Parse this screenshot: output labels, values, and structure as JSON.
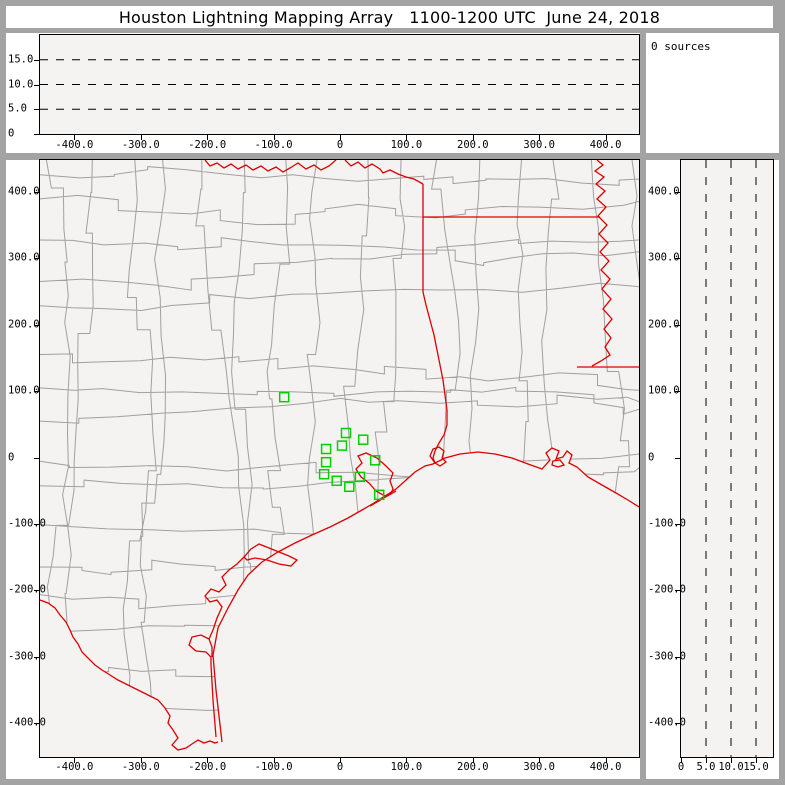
{
  "title": "Houston Lightning Mapping Array   1100-1200 UTC  June 24, 2018",
  "colors": {
    "frame_gray": "#a3a3a3",
    "panel_white": "#ffffff",
    "plot_background": "#f4f3f1",
    "axis_black": "#000000",
    "county_gray": "#a0a0a0",
    "state_border_red": "#dd0000",
    "station_green": "#00d000"
  },
  "chart_data": [
    {
      "id": "ew-altitude-cross-section",
      "type": "scatter",
      "title": "",
      "xlabel": "",
      "ylabel": "",
      "x_range": [
        -452,
        450
      ],
      "y_range": [
        0,
        20
      ],
      "x_ticks": {
        "values": [
          -400,
          -300,
          -200,
          -100,
          0,
          100,
          200,
          300,
          400
        ],
        "labels": [
          "-400.0",
          "-300.0",
          "-200.0",
          "-100.0",
          "0",
          "100.0",
          "200.0",
          "300.0",
          "400.0"
        ]
      },
      "y_ticks": {
        "values": [
          15,
          10,
          5,
          0
        ],
        "labels": [
          "15.0",
          "10.0",
          "5.0",
          "0"
        ]
      },
      "dashed_gridlines_altitude_km": [
        5,
        10,
        15
      ],
      "grid": "dashed horizontal",
      "points": []
    },
    {
      "id": "source-count-histogram",
      "type": "histogram",
      "label": "0 sources",
      "values": []
    },
    {
      "id": "plan-view-map",
      "type": "scatter",
      "title": "",
      "x_range": [
        -452,
        450
      ],
      "y_range": [
        -450,
        448
      ],
      "x_ticks": {
        "values": [
          -400,
          -300,
          -200,
          -100,
          0,
          100,
          200,
          300,
          400
        ],
        "labels": [
          "-400.0",
          "-300.0",
          "-200.0",
          "-100.0",
          "0",
          "100.0",
          "200.0",
          "300.0",
          "400.0"
        ]
      },
      "y_ticks": {
        "values": [
          400,
          300,
          200,
          100,
          0,
          -100,
          -200,
          -300,
          -400
        ],
        "labels": [
          "400.0",
          "300.0",
          "200.0",
          "100.0",
          "0",
          "-100.0",
          "-200.0",
          "-300.0",
          "-400.0"
        ]
      },
      "station_marker": "hollow-green-square",
      "stations_km": [
        [
          -84,
          91
        ],
        [
          9,
          37
        ],
        [
          35,
          27
        ],
        [
          3,
          18
        ],
        [
          -21,
          13
        ],
        [
          -21,
          -7
        ],
        [
          -24,
          -25
        ],
        [
          -5,
          -35
        ],
        [
          14,
          -44
        ],
        [
          30,
          -29
        ],
        [
          53,
          -4
        ],
        [
          59,
          -56
        ]
      ],
      "map_features": [
        "county-boundaries",
        "state-borders",
        "gulf-coastline",
        "rivers",
        "barrier-islands",
        "bays"
      ],
      "points": []
    },
    {
      "id": "ns-altitude-cross-section",
      "type": "scatter",
      "title": "",
      "x_range": [
        0,
        18.4
      ],
      "y_range": [
        -450,
        448
      ],
      "x_ticks": {
        "values": [
          0,
          5,
          10,
          15
        ],
        "labels": [
          "0",
          "5.0",
          "10.0",
          "15.0"
        ]
      },
      "y_ticks": {
        "values": [
          400,
          300,
          200,
          100,
          0,
          -100,
          -200,
          -300,
          -400
        ],
        "labels": [
          "400.0",
          "300.0",
          "200.0",
          "100.0",
          "0",
          "-100.0",
          "-200.0",
          "-300.0",
          "-400.0"
        ]
      },
      "dashed_gridlines_altitude_km": [
        5,
        10,
        15
      ],
      "grid": "dashed vertical",
      "points": []
    }
  ]
}
